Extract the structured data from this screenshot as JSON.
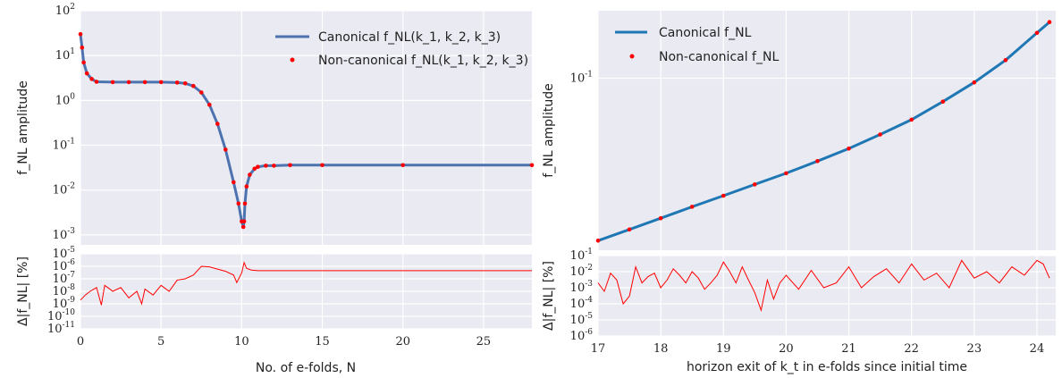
{
  "chart_data": [
    {
      "type": "line",
      "panel": "left",
      "xlabel": "No. of e-folds, N",
      "xlim": [
        0,
        28
      ],
      "x_ticks": [
        "0",
        "5",
        "10",
        "15",
        "20",
        "25"
      ],
      "top": {
        "ylabel": "f_NL amplitude",
        "yscale": "log",
        "ylim": [
          0.0006,
          100
        ],
        "y_ticks": [
          "10^-3",
          "10^-2",
          "10^-1",
          "10^0",
          "10^1",
          "10^2"
        ],
        "legend_position": "upper-right",
        "series": [
          {
            "name": "Canonical f_NL(k_1, k_2, k_3)",
            "style": "line",
            "color": "#4c72b0",
            "x": [
              0,
              0.1,
              0.2,
              0.4,
              0.7,
              1,
              2,
              3,
              4,
              5,
              6,
              6.5,
              7,
              7.5,
              8,
              8.5,
              9,
              9.5,
              9.8,
              10,
              10.1,
              10.15,
              10.2,
              10.3,
              10.5,
              10.8,
              11,
              11.5,
              12,
              13,
              15,
              20,
              28
            ],
            "y": [
              30,
              15,
              7,
              4,
              3,
              2.6,
              2.55,
              2.55,
              2.55,
              2.55,
              2.5,
              2.4,
              2.1,
              1.5,
              0.8,
              0.3,
              0.08,
              0.015,
              0.005,
              0.002,
              0.0015,
              0.002,
              0.005,
              0.012,
              0.022,
              0.03,
              0.033,
              0.035,
              0.035,
              0.036,
              0.036,
              0.036,
              0.036
            ]
          },
          {
            "name": "Non-canonical f_NL(k_1, k_2, k_3)",
            "style": "markers",
            "color": "#ff0000",
            "x": [
              0,
              0.1,
              0.2,
              0.4,
              0.7,
              1,
              2,
              3,
              4,
              5,
              6,
              6.5,
              7,
              7.5,
              8,
              8.5,
              9,
              9.5,
              9.8,
              10,
              10.1,
              10.15,
              10.2,
              10.3,
              10.5,
              10.8,
              11,
              11.5,
              12,
              13,
              15,
              20,
              28
            ],
            "y": [
              30,
              15,
              7,
              4,
              3,
              2.6,
              2.55,
              2.55,
              2.55,
              2.55,
              2.5,
              2.4,
              2.1,
              1.5,
              0.8,
              0.3,
              0.08,
              0.015,
              0.005,
              0.002,
              0.0015,
              0.002,
              0.005,
              0.012,
              0.022,
              0.03,
              0.033,
              0.035,
              0.035,
              0.036,
              0.036,
              0.036,
              0.036
            ]
          }
        ]
      },
      "bottom": {
        "ylabel": "Δ|f_NL| [%]",
        "yscale": "log",
        "ylim": [
          1e-11,
          1e-05
        ],
        "y_ticks": [
          "10^-11",
          "10^-10",
          "10^-9",
          "10^-8",
          "10^-7",
          "10^-6",
          "10^-5"
        ],
        "series": [
          {
            "name": "",
            "color": "#ff0000",
            "x": [
              0,
              0.3,
              0.6,
              1,
              1.3,
              1.5,
              1.7,
              2,
              2.5,
              3,
              3.5,
              3.8,
              4,
              4.5,
              5,
              5.5,
              6,
              6.5,
              7,
              7.5,
              8,
              8.5,
              9,
              9.5,
              9.7,
              10,
              10.15,
              10.3,
              10.6,
              11,
              12,
              15,
              20,
              28
            ],
            "y": [
              2e-09,
              5e-09,
              1e-08,
              2e-08,
              8e-10,
              3e-08,
              2e-08,
              1e-08,
              2e-08,
              3e-09,
              1e-08,
              1e-09,
              1.5e-08,
              5e-09,
              3e-08,
              1e-08,
              8e-08,
              1e-07,
              2e-07,
              1e-06,
              9e-07,
              6e-07,
              4e-07,
              2e-07,
              5e-08,
              3e-07,
              2e-06,
              7e-07,
              5e-07,
              4.5e-07,
              4.5e-07,
              4.5e-07,
              4.5e-07,
              4.5e-07
            ]
          }
        ]
      }
    },
    {
      "type": "line",
      "panel": "right",
      "xlabel": "horizon exit of k_t in e-folds since initial time",
      "xlim": [
        17,
        24.3
      ],
      "x_ticks": [
        "17",
        "18",
        "19",
        "20",
        "21",
        "22",
        "23",
        "24"
      ],
      "top": {
        "ylabel": "f_NL amplitude",
        "yscale": "log",
        "ylim": [
          0.012,
          0.23
        ],
        "y_ticks": [
          "10^-1"
        ],
        "legend_position": "upper-left",
        "series": [
          {
            "name": "Canonical f_NL",
            "style": "line",
            "color": "#1f77b4",
            "x": [
              17,
              17.5,
              18,
              18.5,
              19,
              19.5,
              20,
              20.5,
              21,
              21.5,
              22,
              22.5,
              23,
              23.5,
              24,
              24.2
            ],
            "y": [
              0.0135,
              0.0155,
              0.0178,
              0.0205,
              0.0235,
              0.027,
              0.031,
              0.036,
              0.042,
              0.05,
              0.06,
              0.075,
              0.095,
              0.125,
              0.175,
              0.2
            ]
          },
          {
            "name": "Non-canonical f_NL",
            "style": "markers",
            "color": "#ff0000",
            "x": [
              17,
              17.5,
              18,
              18.5,
              19,
              19.5,
              20,
              20.5,
              21,
              21.5,
              22,
              22.5,
              23,
              23.5,
              24,
              24.2
            ],
            "y": [
              0.0135,
              0.0155,
              0.0178,
              0.0205,
              0.0235,
              0.027,
              0.031,
              0.036,
              0.042,
              0.05,
              0.06,
              0.075,
              0.095,
              0.125,
              0.175,
              0.2
            ]
          }
        ]
      },
      "bottom": {
        "ylabel": "Δ|f_NL| [%]",
        "yscale": "log",
        "ylim": [
          1e-06,
          0.1
        ],
        "y_ticks": [
          "10^-6",
          "10^-5",
          "10^-4",
          "10^-3",
          "10^-2",
          "10^-1"
        ],
        "series": [
          {
            "name": "",
            "color": "#ff0000",
            "x": [
              17,
              17.1,
              17.2,
              17.3,
              17.4,
              17.5,
              17.6,
              17.7,
              17.8,
              17.9,
              18,
              18.1,
              18.2,
              18.3,
              18.4,
              18.5,
              18.6,
              18.7,
              18.8,
              18.9,
              19,
              19.1,
              19.2,
              19.3,
              19.4,
              19.5,
              19.6,
              19.7,
              19.8,
              19.9,
              20,
              20.2,
              20.4,
              20.6,
              20.8,
              21,
              21.2,
              21.4,
              21.6,
              21.8,
              22,
              22.2,
              22.4,
              22.6,
              22.8,
              23,
              23.2,
              23.4,
              23.6,
              23.8,
              24,
              24.1,
              24.2
            ],
            "y": [
              0.002,
              0.0006,
              0.008,
              0.003,
              0.0001,
              0.0003,
              0.02,
              0.002,
              0.005,
              0.008,
              0.001,
              0.003,
              0.015,
              0.006,
              0.002,
              0.01,
              0.004,
              0.0008,
              0.002,
              0.006,
              0.04,
              0.01,
              0.002,
              0.02,
              0.003,
              0.0005,
              4e-05,
              0.003,
              0.0002,
              0.002,
              0.006,
              0.0008,
              0.012,
              0.001,
              0.002,
              0.02,
              0.001,
              0.005,
              0.015,
              0.002,
              0.03,
              0.003,
              0.008,
              0.001,
              0.05,
              0.004,
              0.01,
              0.002,
              0.02,
              0.006,
              0.05,
              0.03,
              0.004
            ]
          }
        ]
      }
    }
  ]
}
